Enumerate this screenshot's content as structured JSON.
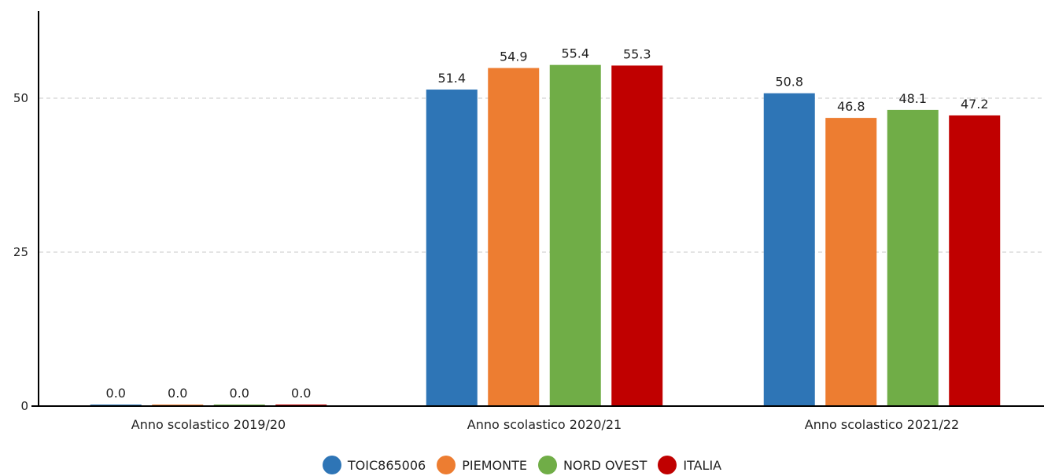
{
  "chart_data": {
    "type": "bar",
    "categories": [
      "Anno scolastico 2019/20",
      "Anno scolastico 2020/21",
      "Anno scolastico 2021/22"
    ],
    "series": [
      {
        "name": "TOIC865006",
        "color": "#2e75b6",
        "values": [
          0.0,
          51.4,
          50.8
        ],
        "labels": [
          "0.0",
          "51.4",
          "50.8"
        ]
      },
      {
        "name": "PIEMONTE",
        "color": "#ed7d31",
        "values": [
          0.0,
          54.9,
          46.8
        ],
        "labels": [
          "0.0",
          "54.9",
          "46.8"
        ]
      },
      {
        "name": "NORD OVEST",
        "color": "#70ad47",
        "values": [
          0.0,
          55.4,
          48.1
        ],
        "labels": [
          "0.0",
          "55.4",
          "48.1"
        ]
      },
      {
        "name": "ITALIA",
        "color": "#c00000",
        "values": [
          0.0,
          55.3,
          47.2
        ],
        "labels": [
          "0.0",
          "55.3",
          "47.2"
        ]
      }
    ],
    "yticks": [
      0,
      25,
      50
    ],
    "ylim": [
      0,
      62
    ],
    "grid": true,
    "legend_position": "bottom-center",
    "title": "",
    "xlabel": "",
    "ylabel": ""
  }
}
